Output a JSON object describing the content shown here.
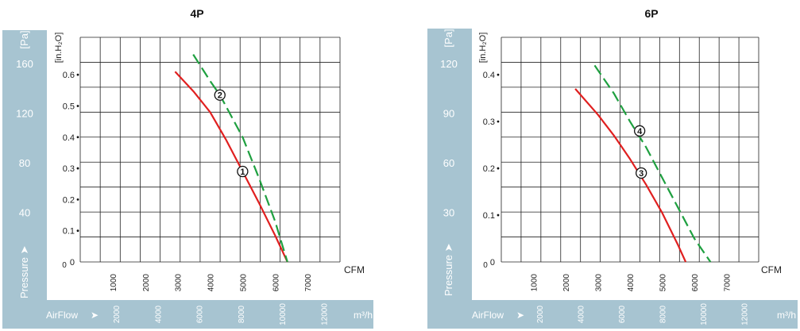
{
  "chart_data": [
    {
      "type": "line",
      "title": "4P",
      "x_unit": "CFM",
      "x_ticks": [
        1000,
        2000,
        3000,
        4000,
        5000,
        6000,
        7000
      ],
      "xlim": [
        0,
        8000
      ],
      "y_unit": "[in.H₂O]",
      "y_ticks": [
        0,
        0.1,
        0.2,
        0.3,
        0.4,
        0.5,
        0.6
      ],
      "ylim": [
        0,
        0.72
      ],
      "pa_unit": "[Pa]",
      "pa_ticks": [
        40,
        80,
        120,
        160
      ],
      "pressure_label": "Pressure",
      "airflow_label": "AirFlow",
      "m3_unit": "m³/h",
      "m3_ticks": [
        2000,
        4000,
        6000,
        8000,
        10000,
        12000
      ],
      "series": [
        {
          "name": "①",
          "color": "#e02020",
          "style": "solid",
          "x": [
            2920,
            3500,
            4000,
            4500,
            5000,
            5500,
            6000,
            6380
          ],
          "y": [
            0.61,
            0.545,
            0.48,
            0.39,
            0.29,
            0.19,
            0.085,
            0.0
          ],
          "label_at": [
            5000,
            0.29
          ]
        },
        {
          "name": "②",
          "color": "#1fa040",
          "style": "dashed",
          "x": [
            3480,
            4000,
            4300,
            5000,
            5500,
            6000,
            6380
          ],
          "y": [
            0.665,
            0.58,
            0.535,
            0.4,
            0.27,
            0.13,
            0.0
          ],
          "label_at": [
            4300,
            0.535
          ]
        }
      ]
    },
    {
      "type": "line",
      "title": "6P",
      "x_unit": "CFM",
      "x_ticks": [
        1000,
        2000,
        3000,
        4000,
        5000,
        6000,
        7000
      ],
      "xlim": [
        0,
        8000
      ],
      "y_unit": "[in.H₂O]",
      "y_ticks": [
        0,
        0.1,
        0.2,
        0.3,
        0.4
      ],
      "ylim": [
        0,
        0.48
      ],
      "pa_unit": "[Pa]",
      "pa_ticks": [
        30,
        60,
        90,
        120
      ],
      "pressure_label": "Pressure",
      "airflow_label": "AirFlow",
      "m3_unit": "m³/h",
      "m3_ticks": [
        2000,
        4000,
        6000,
        8000,
        10000,
        12000
      ],
      "series": [
        {
          "name": "③",
          "color": "#e02020",
          "style": "solid",
          "x": [
            2300,
            3000,
            3500,
            4000,
            4500,
            5000,
            5500,
            5730
          ],
          "y": [
            0.37,
            0.315,
            0.27,
            0.22,
            0.165,
            0.105,
            0.035,
            0.0
          ],
          "label_at": [
            4350,
            0.19
          ]
        },
        {
          "name": "④",
          "color": "#1fa040",
          "style": "dashed",
          "x": [
            2900,
            3500,
            4000,
            4500,
            5000,
            5500,
            6000,
            6500
          ],
          "y": [
            0.42,
            0.36,
            0.3,
            0.245,
            0.18,
            0.115,
            0.05,
            0.0
          ],
          "label_at": [
            4300,
            0.28
          ]
        }
      ]
    }
  ]
}
